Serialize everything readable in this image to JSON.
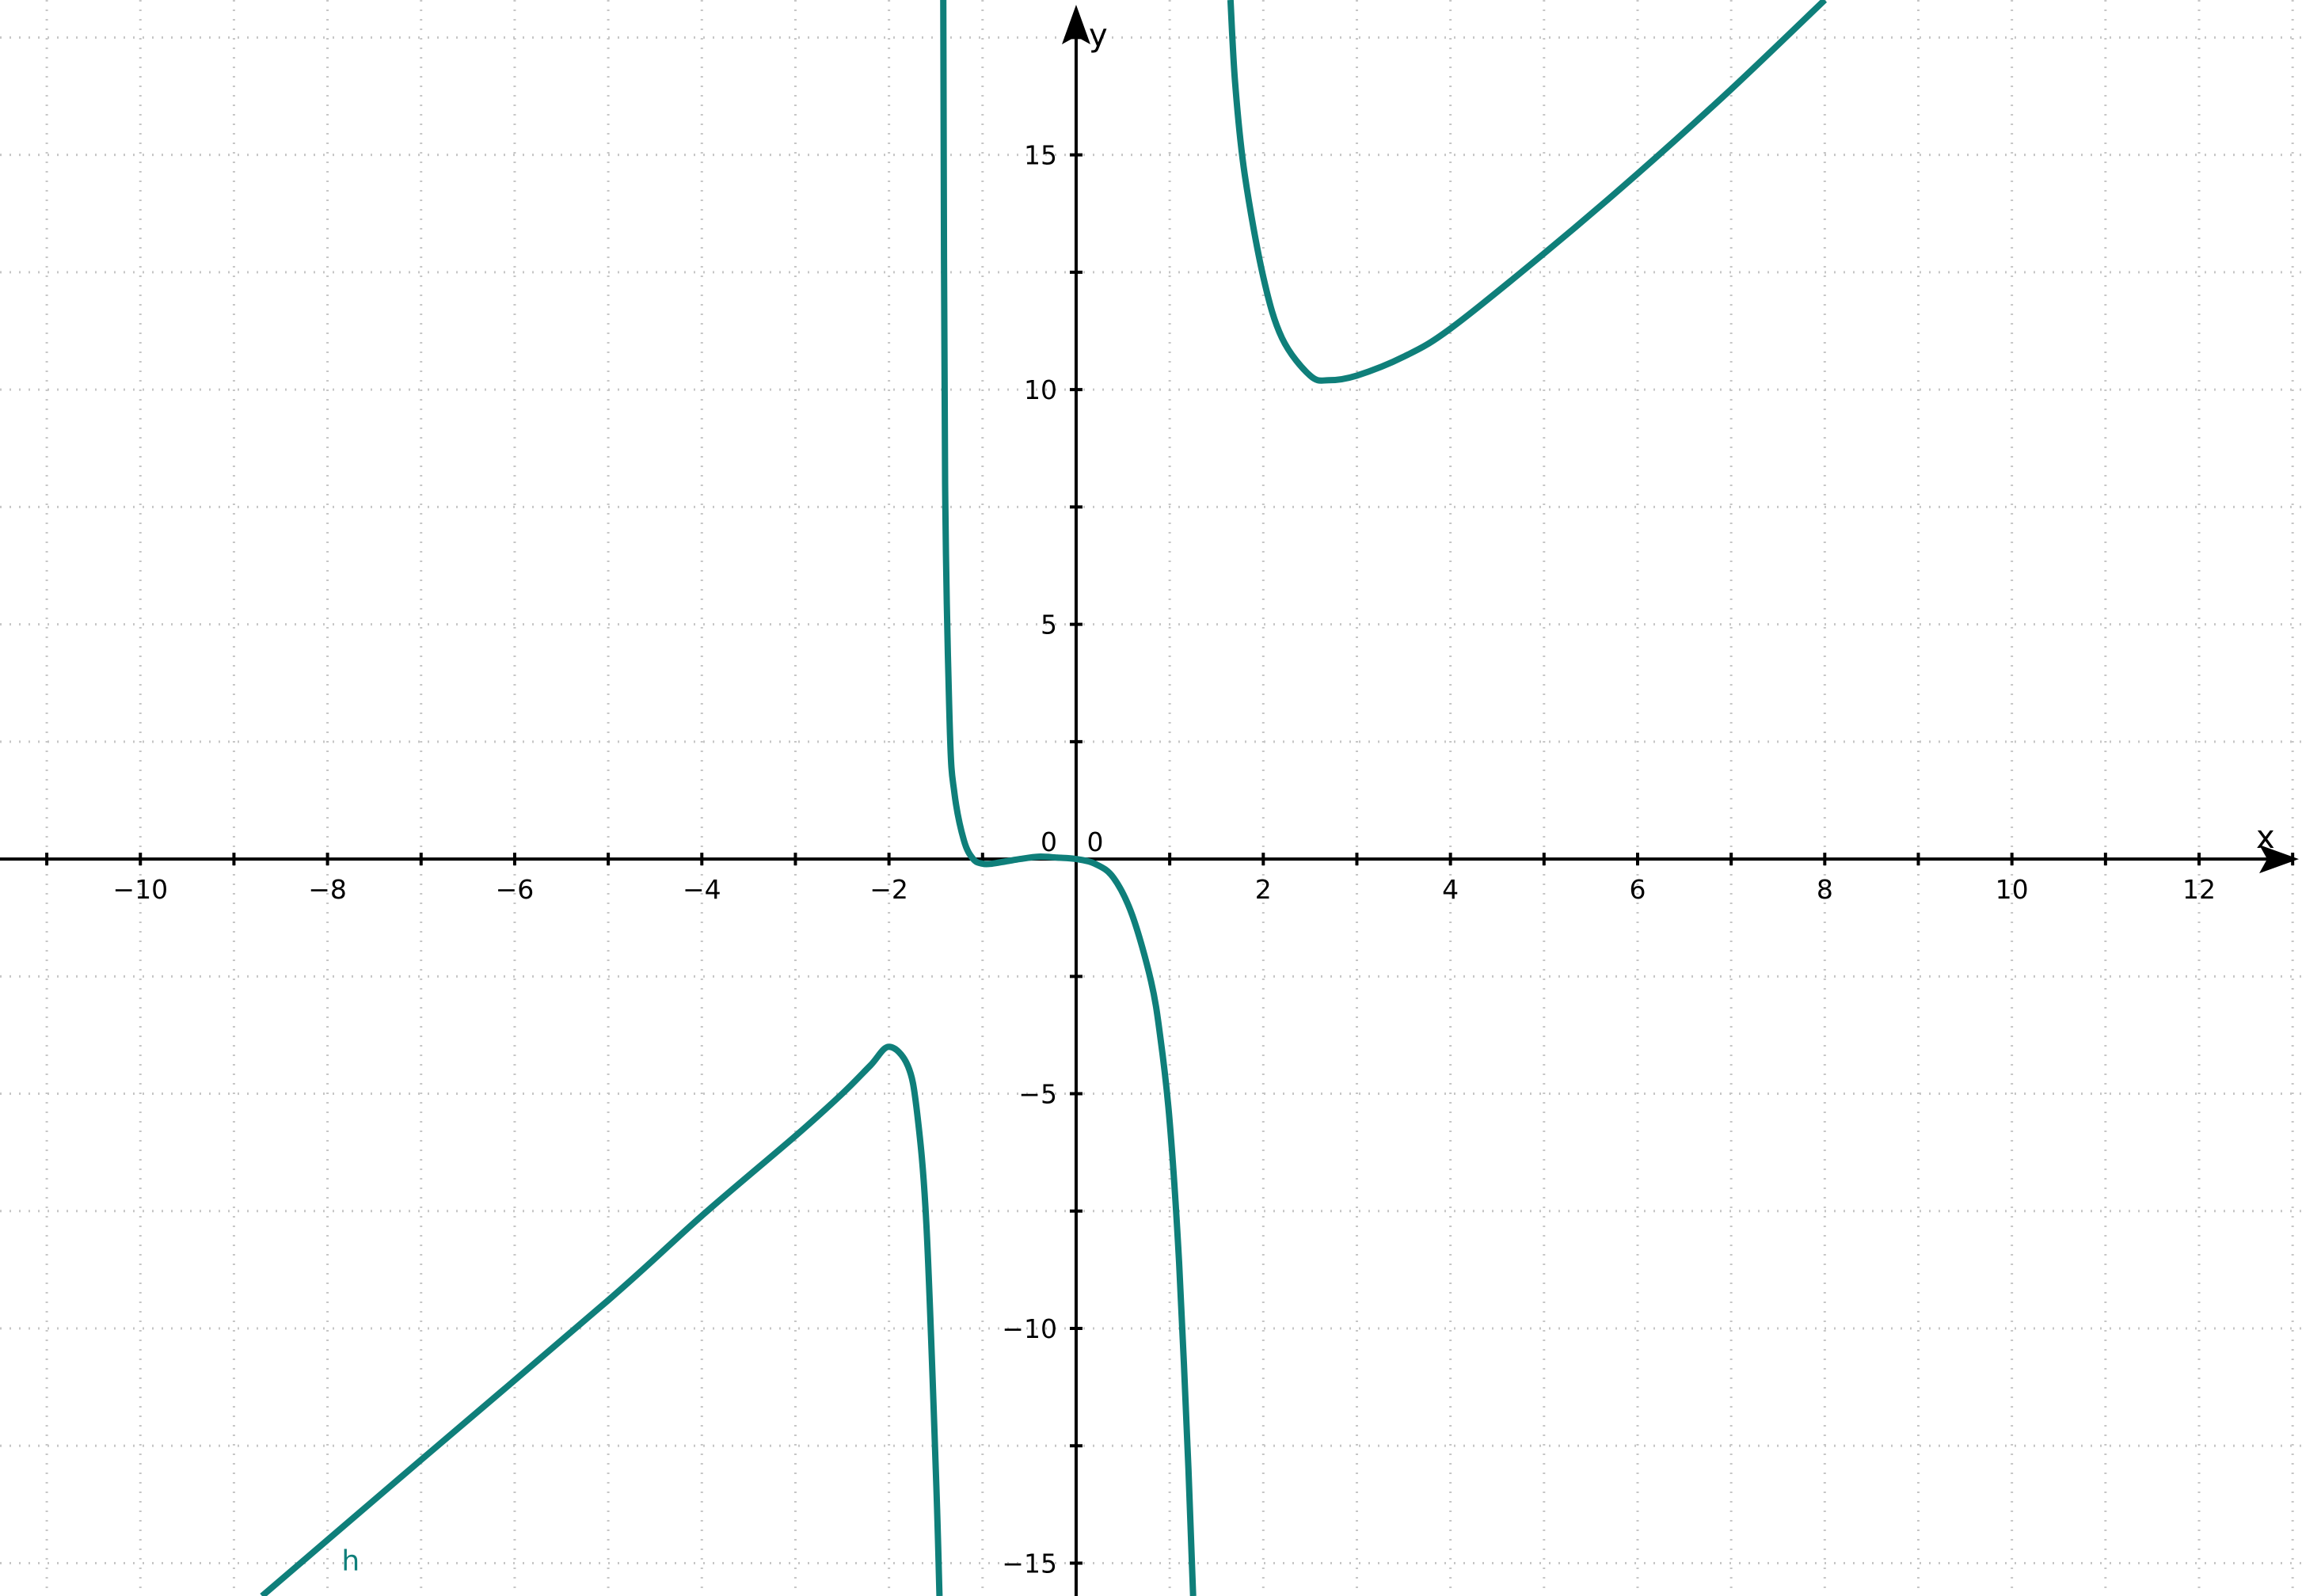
{
  "chart_data": {
    "type": "line",
    "title": "",
    "xlabel": "x",
    "ylabel": "y",
    "xlim": [
      -11.5,
      13.1
    ],
    "ylim": [
      -15.7,
      18.3
    ],
    "grid": true,
    "x_ticks": [
      -10,
      -8,
      -6,
      -4,
      -2,
      0,
      2,
      4,
      6,
      8,
      10,
      12
    ],
    "x_tick_labels": [
      "−10",
      "−8",
      "−6",
      "−4",
      "−2",
      "0",
      "2",
      "4",
      "6",
      "8",
      "10",
      "12"
    ],
    "y_ticks": [
      -15,
      -10,
      -5,
      5,
      10,
      15
    ],
    "y_tick_labels": [
      "−15",
      "−10",
      "−5",
      "5",
      "10",
      "15"
    ],
    "colors": {
      "curve": "#0f7f7a",
      "axis": "#000000",
      "grid": "#c6c6c6"
    },
    "series": [
      {
        "name": "h",
        "color": "#0f7f7a",
        "branches": [
          {
            "x": [
              -8.7,
              -7,
              -5,
              -4,
              -3,
              -2.5,
              -2.2,
              -2.0,
              -1.8,
              -1.7,
              -1.6,
              -1.5,
              -1.46
            ],
            "y": [
              -15.7,
              -12.8,
              -9.4,
              -7.6,
              -5.9,
              -5.0,
              -4.4,
              -4.0,
              -4.4,
              -5.4,
              -7.8,
              -13.0,
              -15.7
            ]
          },
          {
            "x": [
              -1.42,
              -1.4,
              -1.35,
              -1.3,
              -1.2,
              -1.1,
              -1.0,
              -0.9,
              -0.75,
              -0.6,
              -0.4,
              -0.2,
              0,
              0.2,
              0.4,
              0.6,
              0.8,
              0.9,
              1.0,
              1.1,
              1.2,
              1.25
            ],
            "y": [
              18.3,
              8.0,
              2.8,
              1.4,
              0.4,
              0.0,
              -0.1,
              -0.1,
              -0.05,
              0.0,
              0.05,
              0.03,
              0.0,
              -0.1,
              -0.4,
              -1.2,
              -2.6,
              -3.8,
              -5.6,
              -8.6,
              -13.0,
              -15.7
            ]
          },
          {
            "x": [
              1.65,
              1.7,
              1.8,
              2.0,
              2.2,
              2.5,
              2.7,
              3.0,
              3.5,
              4.0,
              5.0,
              6.0,
              7.0,
              8.0
            ],
            "y": [
              18.3,
              16.5,
              14.6,
              12.4,
              11.1,
              10.3,
              10.2,
              10.3,
              10.7,
              11.3,
              12.9,
              14.6,
              16.4,
              18.3
            ]
          }
        ]
      }
    ]
  }
}
